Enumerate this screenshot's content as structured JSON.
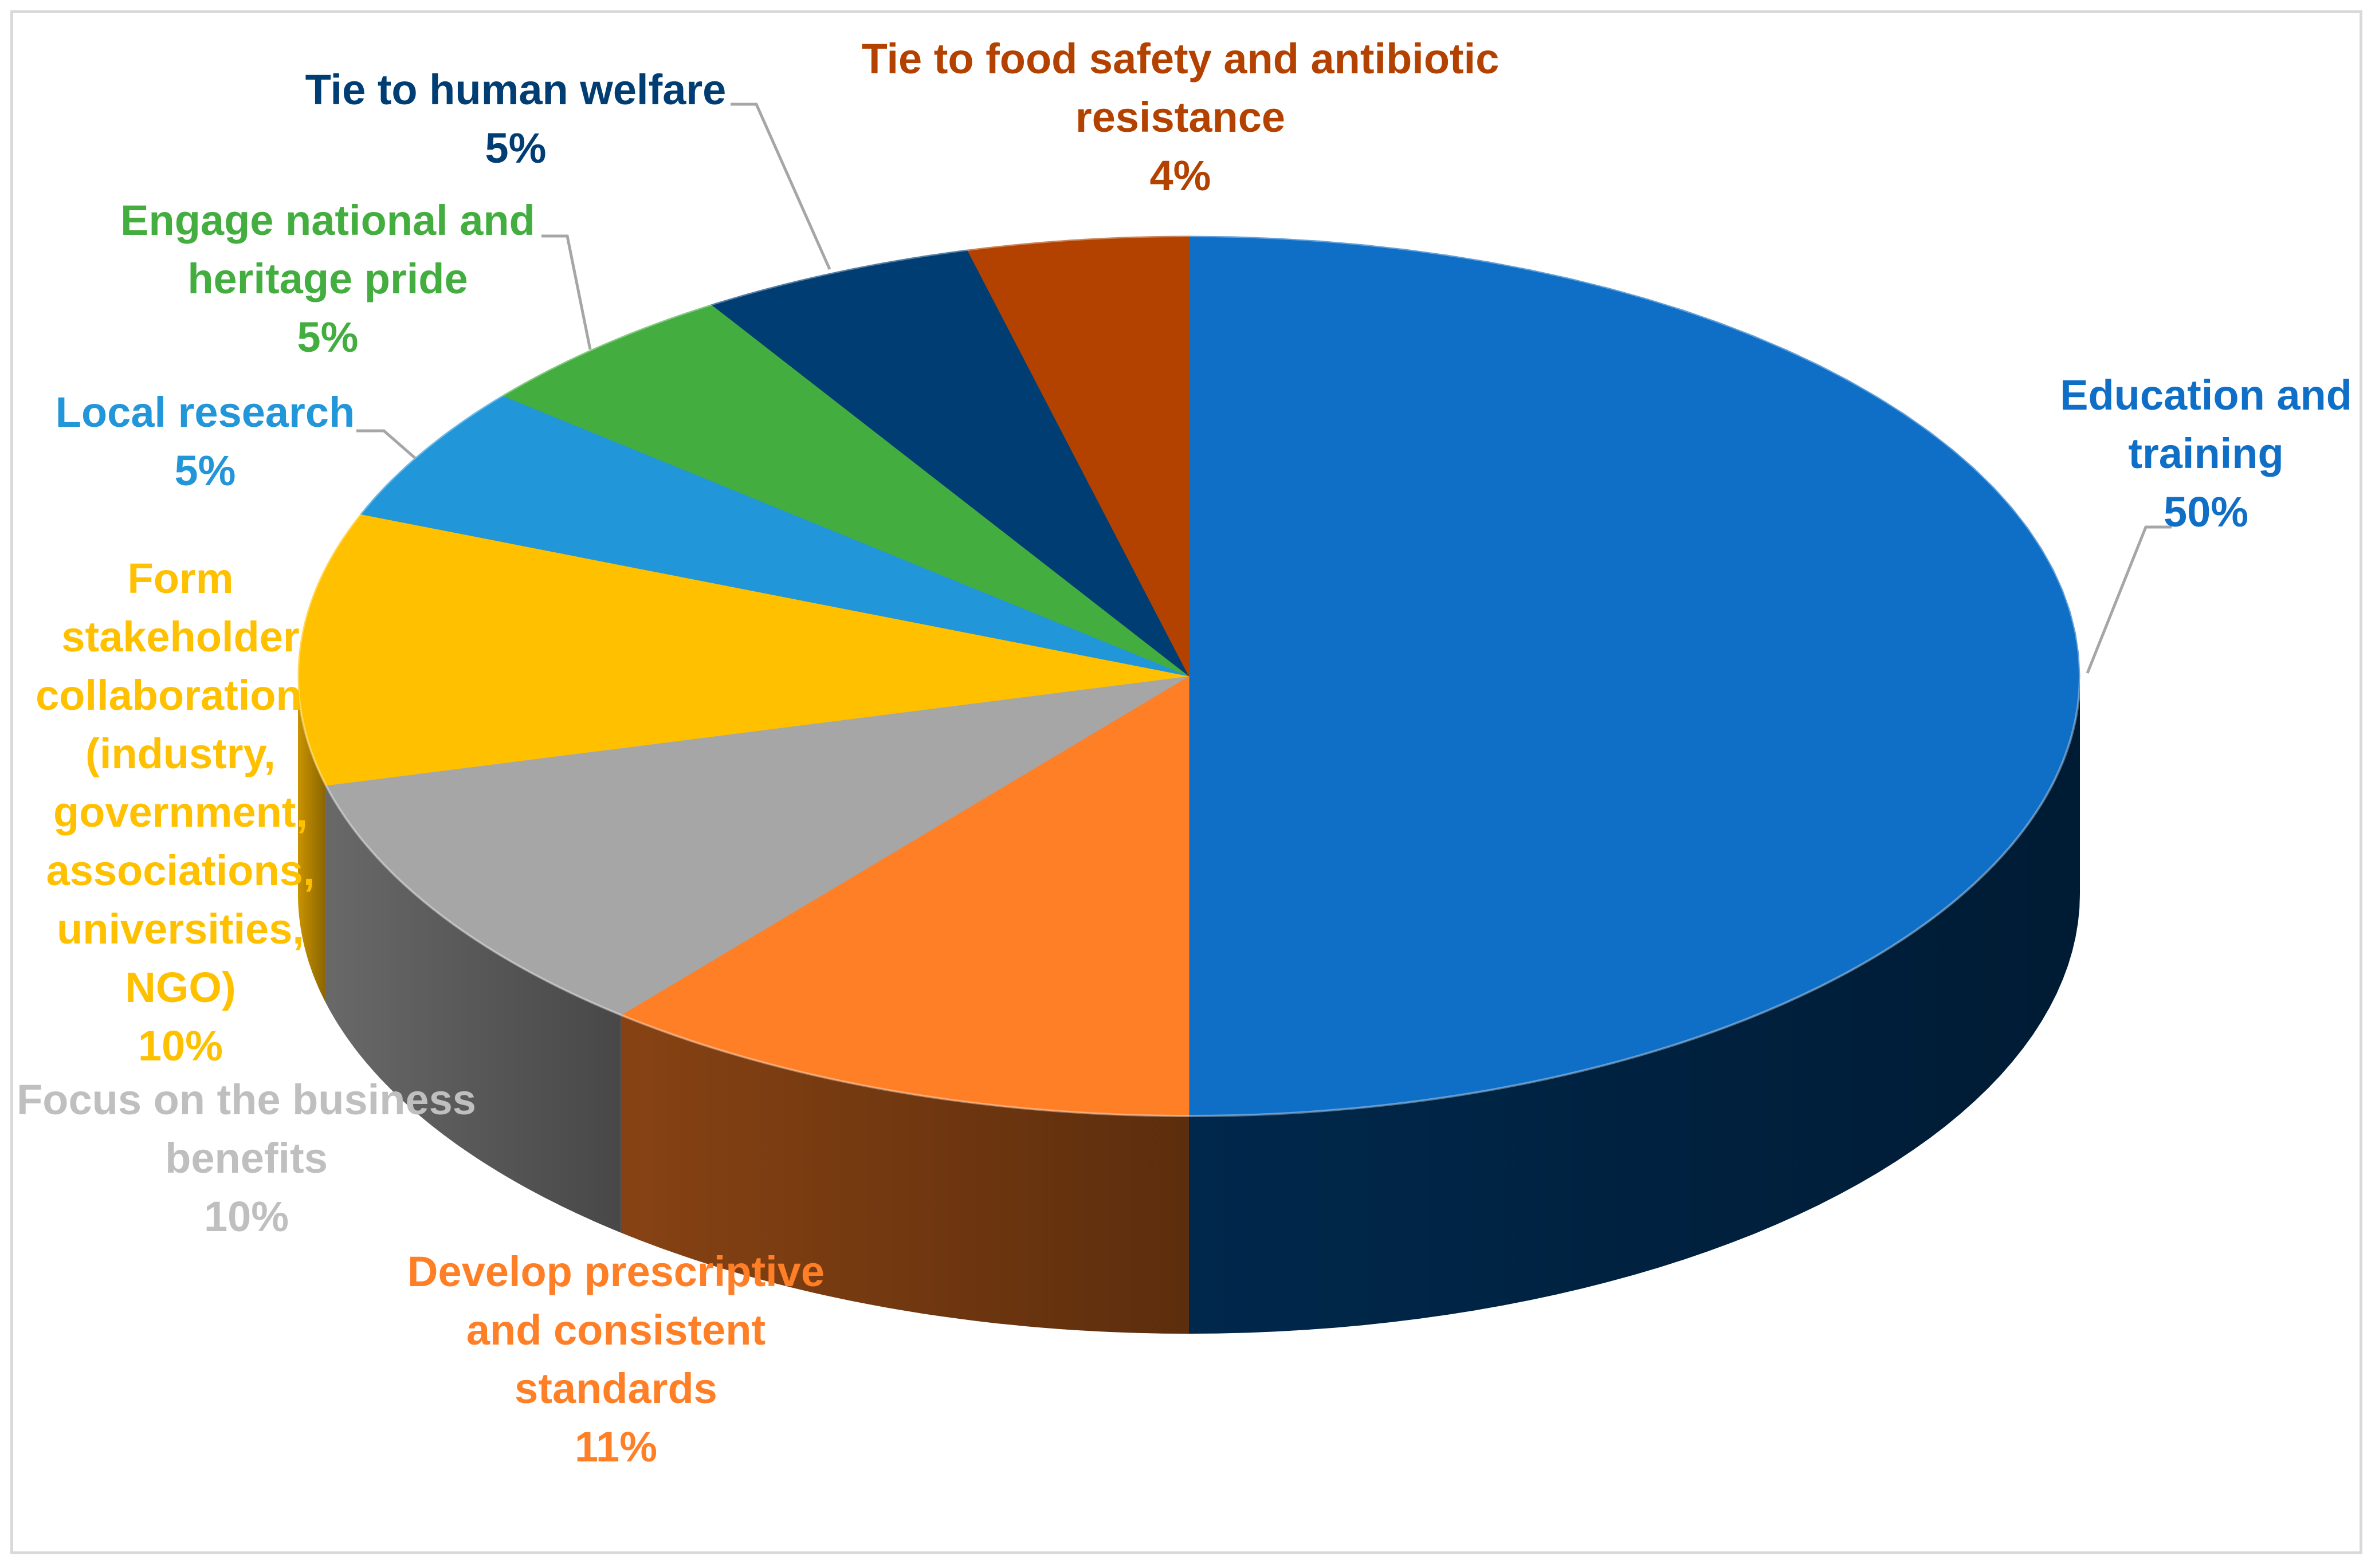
{
  "chart_data": {
    "type": "pie",
    "three_d": true,
    "title": "",
    "slices": [
      {
        "name": "Education and training",
        "value": 50,
        "pct_label": "50%",
        "label_lines": [
          "Education and",
          "training"
        ],
        "color": "#0F6FC6",
        "dark": "#002A50"
      },
      {
        "name": "Develop prescriptive and consistent standards",
        "value": 11,
        "pct_label": "11%",
        "label_lines": [
          "Develop prescriptive",
          "and consistent",
          "standards"
        ],
        "color": "#FF7F27",
        "dark": "#8E4614"
      },
      {
        "name": "Focus on the business benefits",
        "value": 10,
        "pct_label": "10%",
        "label_lines": [
          "Focus on the business",
          "benefits"
        ],
        "color": "#A6A6A6",
        "dark": "#6E6E6E",
        "label_color": "#BFBFBF"
      },
      {
        "name": "Form stakeholder collaborations (industry, government, associations, universities, NGO)",
        "value": 10,
        "pct_label": "10%",
        "label_lines": [
          "Form",
          "stakeholder",
          "collaborations",
          "(industry,",
          "government,",
          "associations,",
          "universities,",
          "NGO)"
        ],
        "color": "#FFC000",
        "dark": "#D39A00"
      },
      {
        "name": "Local research",
        "value": 5,
        "pct_label": "5%",
        "label_lines": [
          "Local research"
        ],
        "color": "#2196D8",
        "dark": "#1670A6"
      },
      {
        "name": "Engage national and heritage pride",
        "value": 5,
        "pct_label": "5%",
        "label_lines": [
          "Engage national and",
          "heritage pride"
        ],
        "color": "#43AE3F",
        "dark": "#2E7E2B"
      },
      {
        "name": "Tie to human welfare",
        "value": 5,
        "pct_label": "5%",
        "label_lines": [
          "Tie to human welfare"
        ],
        "color": "#003D73",
        "dark": "#00233F"
      },
      {
        "name": "Tie to food safety and antibiotic resistance",
        "value": 4,
        "pct_label": "4%",
        "label_lines": [
          "Tie to food safety and antibiotic",
          "resistance"
        ],
        "color": "#B34200",
        "dark": "#6E2800"
      }
    ],
    "label_color_hex": {
      "Education and training": "#0F6FC6",
      "Develop prescriptive and consistent standards": "#FF7F27",
      "Focus on the business benefits": "#BFBFBF",
      "Form stakeholder collaborations (industry, government, associations, universities, NGO)": "#FFC000",
      "Local research": "#2196D8",
      "Engage national and heritage pride": "#43AE3F",
      "Tie to human welfare": "#003D73",
      "Tie to food safety and antibiotic resistance": "#B34200"
    },
    "legend": "none (data labels with leader lines)"
  }
}
